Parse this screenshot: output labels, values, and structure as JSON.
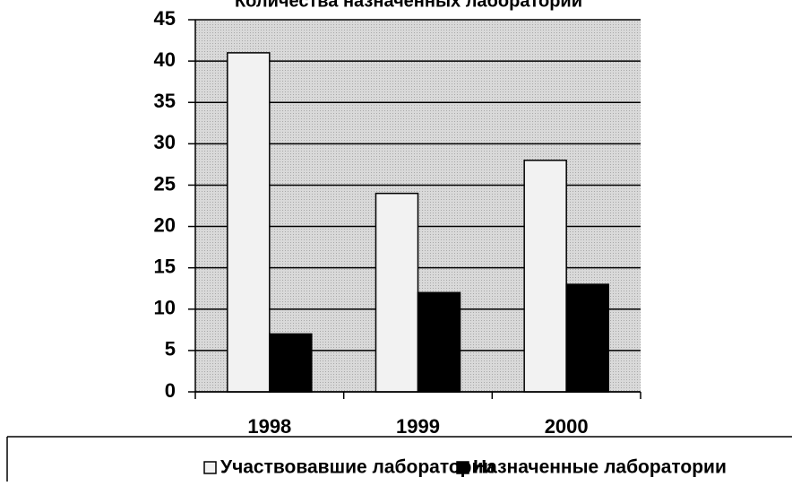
{
  "chart_data": {
    "type": "bar",
    "title": "Количества назначенных лабораторий",
    "categories": [
      "1998",
      "1999",
      "2000"
    ],
    "series": [
      {
        "name": "Участвовавшие лаборатории",
        "color": "#f2f2f2",
        "values": [
          41,
          24,
          28
        ]
      },
      {
        "name": "Назначенные лаборатории",
        "color": "#000000",
        "values": [
          7,
          12,
          13
        ]
      }
    ],
    "ylim": [
      0,
      45
    ],
    "yticks": [
      0,
      5,
      10,
      15,
      20,
      25,
      30,
      35,
      40,
      45
    ],
    "grid": true,
    "legend": "bottom"
  }
}
